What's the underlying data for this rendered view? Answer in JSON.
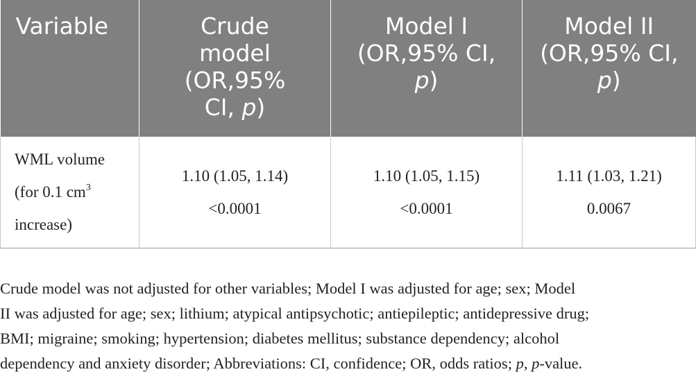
{
  "table": {
    "header": {
      "variable": "Variable",
      "crude": [
        "Crude",
        "model",
        "(OR,95%",
        "CI, ",
        "p",
        ")"
      ],
      "model1": [
        "Model I",
        "(OR,95% CI,",
        "p",
        ")"
      ],
      "model2": [
        "Model II",
        "(OR,95% CI,",
        "p",
        ")"
      ]
    },
    "row": {
      "variable_line1": "WML volume",
      "variable_line2_pre": "(for 0.1 cm",
      "variable_line2_sup": "3",
      "variable_line3": "increase)",
      "crude_or": "1.10 (1.05, 1.14)",
      "crude_p": "<0.0001",
      "model1_or": "1.10 (1.05, 1.15)",
      "model1_p": "<0.0001",
      "model2_or": "1.11 (1.03, 1.21)",
      "model2_p": "0.0067"
    }
  },
  "footnote": {
    "line1": "Crude model was not adjusted for other variables; Model I was adjusted for age; sex; Model",
    "line2": "II was adjusted for age; sex; lithium; atypical antipsychotic; antiepileptic; antidepressive drug;",
    "line3": "BMI; migraine; smoking; hypertension; diabetes mellitus; substance dependency; alcohol",
    "line4_pre": "dependency and anxiety disorder; Abbreviations: CI, confidence; OR, odds ratios; ",
    "line4_p1": "p",
    "line4_mid": ", ",
    "line4_p2": "p",
    "line4_post": "-value."
  }
}
